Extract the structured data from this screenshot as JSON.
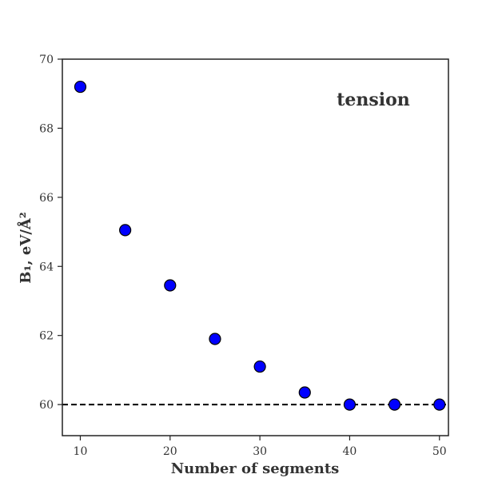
{
  "chart_data": {
    "type": "scatter",
    "title": "",
    "annotation": "tension",
    "xlabel": "Number of segments",
    "ylabel": "B₁, eV/Å²",
    "xlim": [
      8,
      51
    ],
    "ylim": [
      59.1,
      70
    ],
    "xticks": [
      10,
      20,
      30,
      40,
      50
    ],
    "yticks": [
      60,
      62,
      64,
      66,
      68,
      70
    ],
    "grid": false,
    "series": [
      {
        "x": [
          10,
          15,
          20,
          25,
          30,
          35,
          40,
          45,
          50
        ],
        "y": [
          69.2,
          65.05,
          63.45,
          61.9,
          61.1,
          60.35,
          60.0,
          60.0,
          60.0
        ],
        "color": "#0000ff",
        "edge_color": "#000000"
      }
    ],
    "reference_line": {
      "y": 60,
      "style": "dashed",
      "color": "#000000"
    }
  }
}
